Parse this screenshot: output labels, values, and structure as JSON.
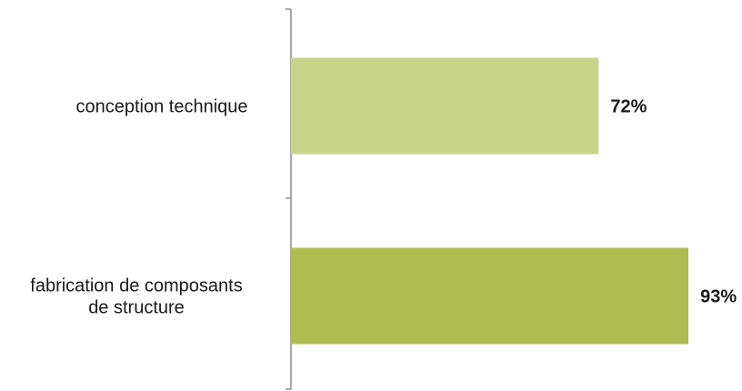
{
  "chart_data": {
    "type": "bar",
    "orientation": "horizontal",
    "categories": [
      [
        "conception technique"
      ],
      [
        "fabrication de composants",
        "de structure"
      ]
    ],
    "values": [
      72,
      93
    ],
    "value_labels": [
      "72%",
      "93%"
    ],
    "unit": "%",
    "xlim": [
      0,
      100
    ],
    "bar_colors": [
      "#c8d38a",
      "#aebc52"
    ],
    "grid": false,
    "legend": "none",
    "title": "",
    "xlabel": "",
    "ylabel": ""
  }
}
